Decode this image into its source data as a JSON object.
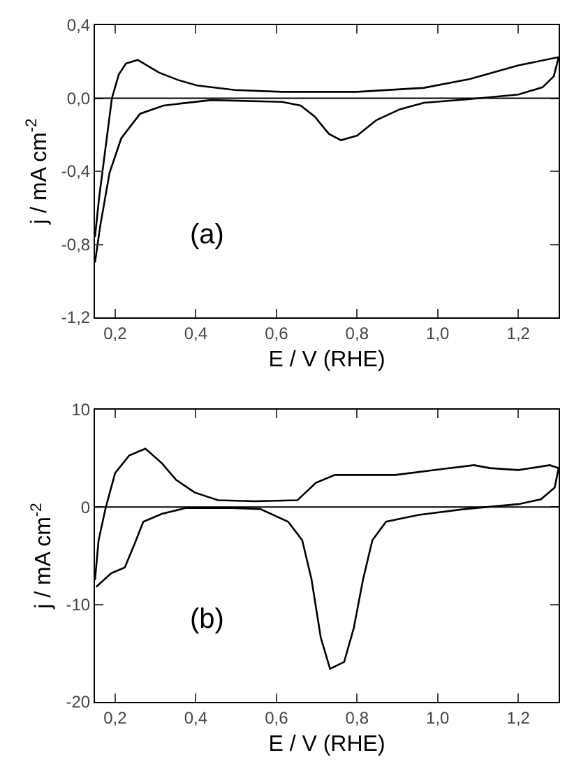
{
  "chart_data": [
    {
      "type": "line",
      "xlabel": "E / V (RHE)",
      "ylabel": "j / mA cm$^{-2}$",
      "annotations": [
        "(a)"
      ],
      "xlim": [
        0.15,
        1.3
      ],
      "xticks": [
        {
          "value": 0.2,
          "label": "0,2"
        },
        {
          "value": 0.4,
          "label": "0,4"
        },
        {
          "value": 0.6,
          "label": "0,6"
        },
        {
          "value": 0.8,
          "label": "0,8"
        },
        {
          "value": 1.0,
          "label": "1,0"
        },
        {
          "value": 1.2,
          "label": "1,2"
        }
      ],
      "ylim": [
        -1.2,
        0.4
      ],
      "yticks": [
        {
          "value": 0.4,
          "label": "0,4"
        },
        {
          "value": 0,
          "label": "0,0"
        },
        {
          "value": -0.4,
          "label": "-0,4"
        },
        {
          "value": -0.8,
          "label": "-0,8"
        },
        {
          "value": -1.2,
          "label": "-1,2"
        }
      ],
      "ref_lines": [
        {
          "axis": "y",
          "value": 0,
          "color": "#000000"
        }
      ],
      "grid": false,
      "marker": "none",
      "line_style": "solid",
      "series": [
        {
          "color": "#000000",
          "x": [
            0.15,
            0.16,
            0.171,
            0.192,
            0.209,
            0.227,
            0.256,
            0.309,
            0.356,
            0.403,
            0.497,
            0.614,
            0.8,
            0.966,
            1.08,
            1.2,
            1.3
          ],
          "values": [
            -0.76,
            -0.55,
            -0.36,
            0,
            0.13,
            0.19,
            0.21,
            0.14,
            0.1,
            0.07,
            0.045,
            0.035,
            0.035,
            0.057,
            0.105,
            0.18,
            0.225
          ]
        },
        {
          "color": "#000000",
          "x": [
            1.3,
            1.288,
            1.26,
            1.2,
            1.08,
            0.966,
            0.907,
            0.848,
            0.8,
            0.76,
            0.73,
            0.695,
            0.66,
            0.614,
            0.438,
            0.32,
            0.262,
            0.215,
            0.186,
            0.163,
            0.15
          ],
          "values": [
            0.225,
            0.12,
            0.06,
            0.02,
            -0.005,
            -0.025,
            -0.06,
            -0.12,
            -0.205,
            -0.23,
            -0.195,
            -0.1,
            -0.04,
            -0.02,
            -0.01,
            -0.04,
            -0.085,
            -0.22,
            -0.41,
            -0.7,
            -0.9
          ]
        }
      ]
    },
    {
      "type": "line",
      "xlabel": "E / V (RHE)",
      "ylabel": "j / mA cm$^{-2}$",
      "annotations": [
        "(b)"
      ],
      "xlim": [
        0.15,
        1.3
      ],
      "xticks": [
        {
          "value": 0.2,
          "label": "0,2"
        },
        {
          "value": 0.4,
          "label": "0,4"
        },
        {
          "value": 0.6,
          "label": "0,6"
        },
        {
          "value": 0.8,
          "label": "0,8"
        },
        {
          "value": 1.0,
          "label": "1,0"
        },
        {
          "value": 1.2,
          "label": "1,2"
        }
      ],
      "ylim": [
        -20,
        10
      ],
      "yticks": [
        10,
        0,
        -10,
        -20
      ],
      "ref_lines": [
        {
          "axis": "y",
          "value": 0,
          "color": "#000000"
        }
      ],
      "grid": false,
      "marker": "none",
      "line_style": "solid",
      "series": [
        {
          "color": "#000000",
          "x": [
            0.15,
            0.159,
            0.177,
            0.2,
            0.235,
            0.275,
            0.316,
            0.351,
            0.397,
            0.455,
            0.547,
            0.652,
            0.698,
            0.745,
            0.895,
            1.01,
            1.09,
            1.13,
            1.2,
            1.278,
            1.3
          ],
          "values": [
            -7.5,
            -3.4,
            0,
            3.5,
            5.3,
            6.0,
            4.5,
            2.8,
            1.5,
            0.7,
            0.6,
            0.7,
            2.5,
            3.3,
            3.3,
            3.9,
            4.3,
            4.0,
            3.8,
            4.3,
            4.0
          ]
        },
        {
          "color": "#000000",
          "x": [
            1.3,
            1.29,
            1.256,
            1.2,
            1.068,
            0.953,
            0.872,
            0.838,
            0.815,
            0.792,
            0.768,
            0.733,
            0.71,
            0.687,
            0.664,
            0.629,
            0.56,
            0.49,
            0.374,
            0.316,
            0.27,
            0.247,
            0.224,
            0.19,
            0.153
          ],
          "values": [
            4.0,
            2.0,
            0.8,
            0.3,
            -0.2,
            -0.8,
            -1.5,
            -3.4,
            -7.4,
            -12.4,
            -15.9,
            -16.6,
            -13.4,
            -7.4,
            -3.4,
            -1.5,
            -0.2,
            -0.1,
            -0.1,
            -0.7,
            -1.5,
            -3.9,
            -6.2,
            -6.8,
            -8.2
          ]
        }
      ]
    }
  ]
}
